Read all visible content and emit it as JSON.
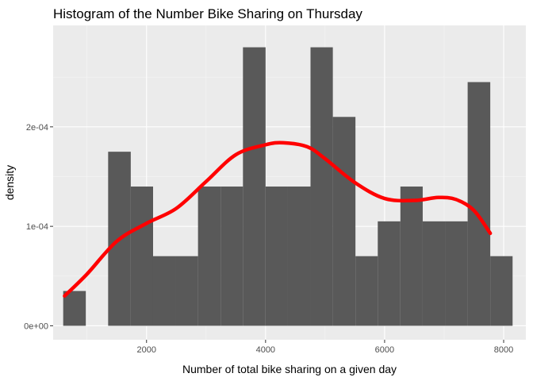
{
  "chart_data": {
    "type": "bar",
    "title": "Histogram of the Number Bike Sharing on Thursday",
    "xlabel": "Number of total bike sharing on a given day",
    "ylabel": "density",
    "xlim": [
      431,
      8373
    ],
    "ylim": [
      -1.4e-05,
      0.000302
    ],
    "x_ticks": [
      {
        "value": 2000,
        "label": "2000"
      },
      {
        "value": 4000,
        "label": "4000"
      },
      {
        "value": 6000,
        "label": "6000"
      },
      {
        "value": 8000,
        "label": "8000"
      }
    ],
    "y_ticks": [
      {
        "value": 0,
        "label": "0e+00"
      },
      {
        "value": 0.0001,
        "label": "1e-04"
      },
      {
        "value": 0.0002,
        "label": "2e-04"
      }
    ],
    "grid": true,
    "bins": [
      {
        "x0": 600,
        "x1": 980,
        "density": 3.5e-05
      },
      {
        "x0": 980,
        "x1": 1355,
        "density": 0
      },
      {
        "x0": 1355,
        "x1": 1735,
        "density": 0.000175
      },
      {
        "x0": 1735,
        "x1": 2110,
        "density": 0.00014
      },
      {
        "x0": 2110,
        "x1": 2490,
        "density": 7e-05
      },
      {
        "x0": 2490,
        "x1": 2865,
        "density": 7e-05
      },
      {
        "x0": 2865,
        "x1": 3245,
        "density": 0.00014
      },
      {
        "x0": 3245,
        "x1": 3620,
        "density": 0.00014
      },
      {
        "x0": 3620,
        "x1": 4000,
        "density": 0.00028
      },
      {
        "x0": 4000,
        "x1": 4375,
        "density": 0.00014
      },
      {
        "x0": 4375,
        "x1": 4755,
        "density": 0.00014
      },
      {
        "x0": 4755,
        "x1": 5130,
        "density": 0.00028
      },
      {
        "x0": 5130,
        "x1": 5510,
        "density": 0.00021
      },
      {
        "x0": 5510,
        "x1": 5885,
        "density": 7e-05
      },
      {
        "x0": 5885,
        "x1": 6265,
        "density": 0.000105
      },
      {
        "x0": 6265,
        "x1": 6640,
        "density": 0.00014
      },
      {
        "x0": 6640,
        "x1": 7020,
        "density": 0.000105
      },
      {
        "x0": 7020,
        "x1": 7395,
        "density": 0.000105
      },
      {
        "x0": 7395,
        "x1": 7775,
        "density": 0.000245
      },
      {
        "x0": 7775,
        "x1": 8150,
        "density": 7e-05
      }
    ],
    "density_curve": {
      "x": [
        623,
        1000,
        1500,
        2000,
        2500,
        3000,
        3500,
        4000,
        4300,
        4700,
        5000,
        5500,
        6000,
        6500,
        6900,
        7200,
        7500,
        7775
      ],
      "y": [
        3e-05,
        5.2e-05,
        8.5e-05,
        0.000103,
        0.000118,
        0.000145,
        0.000172,
        0.000182,
        0.000184,
        0.00018,
        0.000168,
        0.000144,
        0.000128,
        0.000126,
        0.000129,
        0.000127,
        0.000116,
        9.3e-05
      ]
    },
    "colors": {
      "bar": "#595959",
      "curve": "#ff0000",
      "panel": "#ebebeb",
      "grid_major": "#ffffff",
      "grid_minor": "#f5f5f5"
    }
  }
}
